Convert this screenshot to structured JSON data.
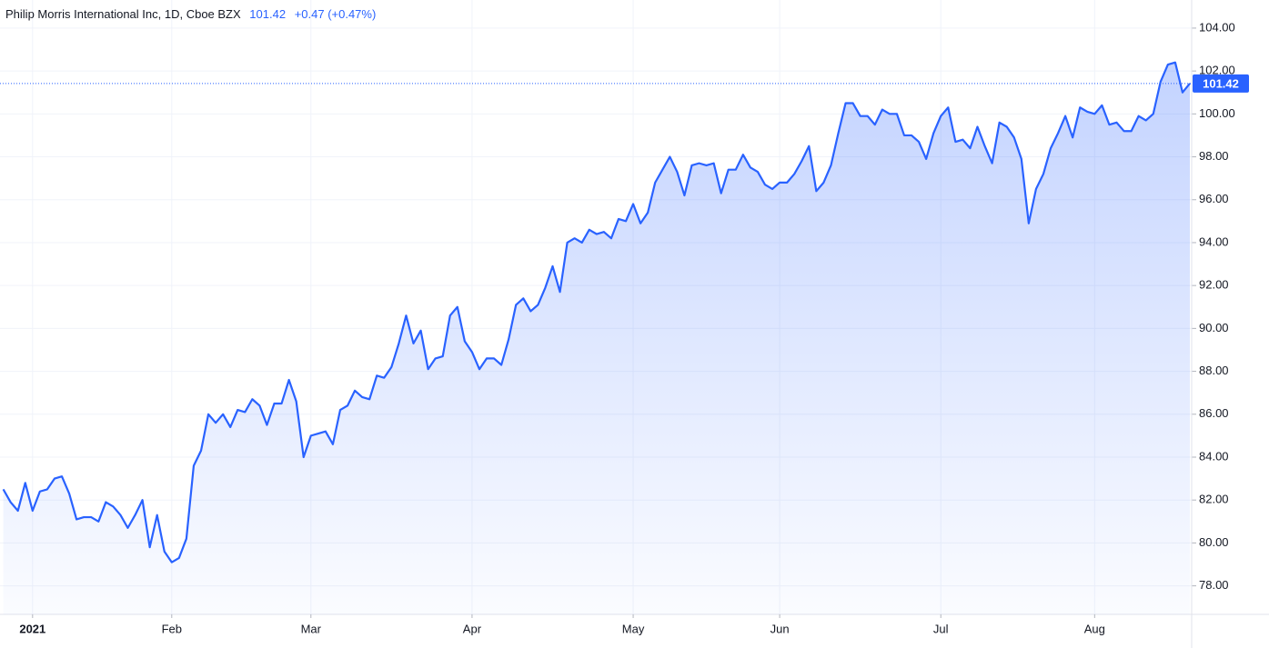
{
  "chart_data": {
    "type": "area",
    "title": "Philip Morris International Inc, 1D, Cboe BZX",
    "change": "+0.47 (+0.47%)",
    "color": "#2962ff",
    "grid": true,
    "ylim": [
      76.67,
      105.31
    ],
    "yticks": [
      {
        "value": 78,
        "label": "78.00"
      },
      {
        "value": 80,
        "label": "80.00"
      },
      {
        "value": 82,
        "label": "82.00"
      },
      {
        "value": 84,
        "label": "84.00"
      },
      {
        "value": 86,
        "label": "86.00"
      },
      {
        "value": 88,
        "label": "88.00"
      },
      {
        "value": 90,
        "label": "90.00"
      },
      {
        "value": 92,
        "label": "92.00"
      },
      {
        "value": 94,
        "label": "94.00"
      },
      {
        "value": 96,
        "label": "96.00"
      },
      {
        "value": 98,
        "label": "98.00"
      },
      {
        "value": 100,
        "label": "100.00"
      },
      {
        "value": 102,
        "label": "102.00"
      },
      {
        "value": 104,
        "label": "104.00"
      }
    ],
    "categories": [
      null,
      null,
      null,
      null,
      "2021",
      null,
      null,
      null,
      null,
      null,
      null,
      null,
      null,
      null,
      null,
      null,
      null,
      null,
      null,
      null,
      null,
      null,
      null,
      "Feb",
      null,
      null,
      null,
      null,
      null,
      null,
      null,
      null,
      null,
      null,
      null,
      null,
      null,
      null,
      null,
      null,
      null,
      null,
      "Mar",
      null,
      null,
      null,
      null,
      null,
      null,
      null,
      null,
      null,
      null,
      null,
      null,
      null,
      null,
      null,
      null,
      null,
      null,
      null,
      null,
      null,
      "Apr",
      null,
      null,
      null,
      null,
      null,
      null,
      null,
      null,
      null,
      null,
      null,
      null,
      null,
      null,
      null,
      null,
      null,
      null,
      null,
      null,
      null,
      "May",
      null,
      null,
      null,
      null,
      null,
      null,
      null,
      null,
      null,
      null,
      null,
      null,
      null,
      null,
      null,
      null,
      null,
      null,
      null,
      "Jun",
      null,
      null,
      null,
      null,
      null,
      null,
      null,
      null,
      null,
      null,
      null,
      null,
      null,
      null,
      null,
      null,
      null,
      null,
      null,
      null,
      null,
      "Jul",
      null,
      null,
      null,
      null,
      null,
      null,
      null,
      null,
      null,
      null,
      null,
      null,
      null,
      null,
      null,
      null,
      null,
      null,
      null,
      null,
      "Aug",
      null,
      null,
      null,
      null,
      null,
      null,
      null,
      null,
      null,
      null,
      null,
      null,
      null
    ],
    "values": [
      82.5,
      81.9,
      81.5,
      82.8,
      81.5,
      82.4,
      82.5,
      83.0,
      83.1,
      82.3,
      81.1,
      81.2,
      81.2,
      81.0,
      81.9,
      81.7,
      81.3,
      80.7,
      81.3,
      82.0,
      79.8,
      81.3,
      79.6,
      79.1,
      79.3,
      80.2,
      83.6,
      84.3,
      86.0,
      85.6,
      86.0,
      85.4,
      86.2,
      86.1,
      86.7,
      86.4,
      85.5,
      86.5,
      86.5,
      87.6,
      86.6,
      84.0,
      85.0,
      85.1,
      85.2,
      84.6,
      86.2,
      86.4,
      87.1,
      86.8,
      86.7,
      87.8,
      87.7,
      88.2,
      89.3,
      90.6,
      89.3,
      89.9,
      88.1,
      88.6,
      88.7,
      90.6,
      91.0,
      89.4,
      88.9,
      88.1,
      88.6,
      88.6,
      88.3,
      89.5,
      91.1,
      91.4,
      90.8,
      91.1,
      91.9,
      92.9,
      91.7,
      94.0,
      94.2,
      94.0,
      94.6,
      94.4,
      94.5,
      94.2,
      95.1,
      95.0,
      95.8,
      94.9,
      95.4,
      96.8,
      97.4,
      98.0,
      97.3,
      96.2,
      97.6,
      97.7,
      97.6,
      97.7,
      96.3,
      97.4,
      97.4,
      98.1,
      97.5,
      97.3,
      96.7,
      96.5,
      96.8,
      96.8,
      97.2,
      97.8,
      98.5,
      96.4,
      96.8,
      97.6,
      99.1,
      100.5,
      100.5,
      99.9,
      99.9,
      99.5,
      100.2,
      100.0,
      100.0,
      99.0,
      99.0,
      98.7,
      97.9,
      99.1,
      99.9,
      100.3,
      98.7,
      98.8,
      98.4,
      99.4,
      98.5,
      97.7,
      99.6,
      99.4,
      98.9,
      97.9,
      94.9,
      96.5,
      97.2,
      98.4,
      99.1,
      99.9,
      98.9,
      100.3,
      100.1,
      100.0,
      100.4,
      99.5,
      99.6,
      99.2,
      99.2,
      99.9,
      99.7,
      100.0,
      101.5,
      102.3,
      102.4,
      101.0,
      101.42
    ]
  }
}
